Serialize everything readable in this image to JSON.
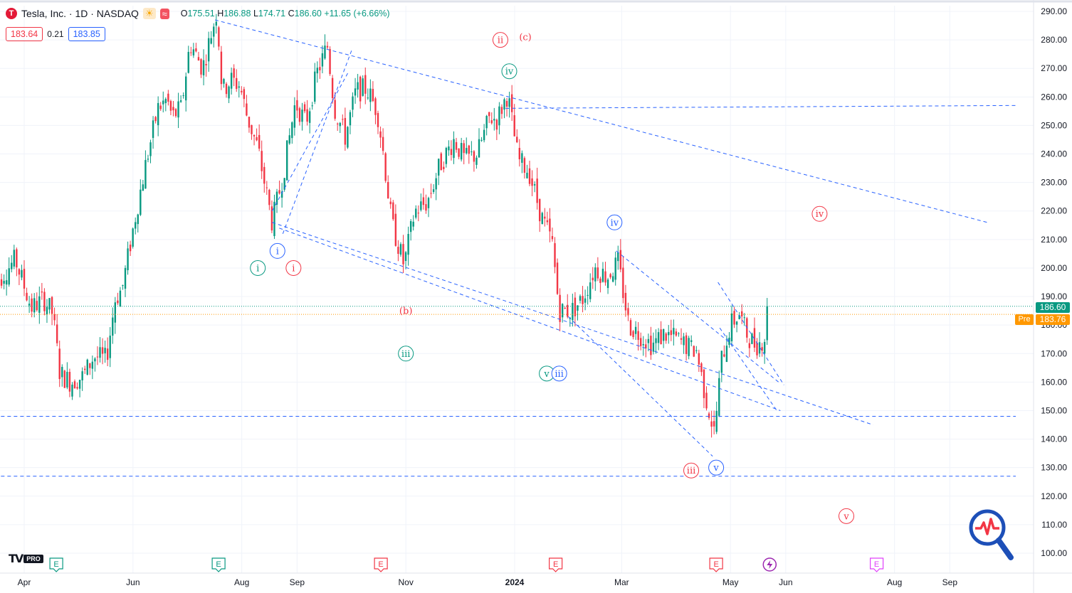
{
  "header": {
    "symbol": "Tesla, Inc. · 1D · NASDAQ",
    "logo_letter": "T",
    "icons": [
      "sun-icon",
      "wave-icon"
    ],
    "ohlc": {
      "open_label": "O",
      "open": "175.51",
      "high_label": "H",
      "high": "186.88",
      "low_label": "L",
      "low": "174.71",
      "close_label": "C",
      "close": "186.60",
      "change": "+11.65 (+6.66%)"
    }
  },
  "trade": {
    "sell": "183.64",
    "spread": "0.21",
    "buy": "183.85"
  },
  "price_tags": {
    "last": "186.60",
    "pre_label": "Pre",
    "pre": "183.76"
  },
  "branding": {
    "mark": "TV",
    "pro": "PRO"
  },
  "colors": {
    "up": "#089981",
    "down": "#f23645",
    "line": "#2962ff",
    "pre": "#ff9800",
    "green_label": "#089981",
    "red_label": "#f23645",
    "blue_label": "#2962ff",
    "event_purple": "#9c27b0",
    "event_magenta": "#e040fb"
  },
  "chart_data": {
    "type": "candlestick",
    "y_ticks": [
      "290.00",
      "280.00",
      "270.00",
      "260.00",
      "250.00",
      "240.00",
      "230.00",
      "220.00",
      "210.00",
      "200.00",
      "190.00",
      "180.00",
      "170.00",
      "160.00",
      "150.00",
      "140.00",
      "130.00",
      "120.00",
      "110.00",
      "100.00"
    ],
    "ylim": [
      97,
      293
    ],
    "x_ticks": [
      {
        "label": "Apr",
        "date": "2023-04-01"
      },
      {
        "label": "Jun",
        "date": "2023-06-01"
      },
      {
        "label": "Aug",
        "date": "2023-08-01"
      },
      {
        "label": "Sep",
        "date": "2023-09-01"
      },
      {
        "label": "Nov",
        "date": "2023-11-01"
      },
      {
        "label": "2024",
        "date": "2024-01-01",
        "bold": true
      },
      {
        "label": "Mar",
        "date": "2024-03-01"
      },
      {
        "label": "May",
        "date": "2024-05-01"
      },
      {
        "label": "Jun",
        "date": "2024-06-01"
      },
      {
        "label": "Aug",
        "date": "2024-08-01"
      },
      {
        "label": "Sep",
        "date": "2024-09-01"
      }
    ],
    "price_path": [
      [
        "2023-03-15",
        194
      ],
      [
        "2023-03-27",
        203
      ],
      [
        "2023-04-05",
        186
      ],
      [
        "2023-04-12",
        189
      ],
      [
        "2023-04-17",
        184
      ],
      [
        "2023-04-21",
        163
      ],
      [
        "2023-04-27",
        160
      ],
      [
        "2023-05-04",
        162
      ],
      [
        "2023-05-10",
        169
      ],
      [
        "2023-05-17",
        168
      ],
      [
        "2023-05-22",
        189
      ],
      [
        "2023-05-26",
        193
      ],
      [
        "2023-06-02",
        217
      ],
      [
        "2023-06-08",
        236
      ],
      [
        "2023-06-15",
        256
      ],
      [
        "2023-06-20",
        259
      ],
      [
        "2023-06-23",
        253
      ],
      [
        "2023-06-28",
        256
      ],
      [
        "2023-07-03",
        279
      ],
      [
        "2023-07-10",
        270
      ],
      [
        "2023-07-18",
        290
      ],
      [
        "2023-07-21",
        262
      ],
      [
        "2023-07-26",
        266
      ],
      [
        "2023-07-31",
        264
      ],
      [
        "2023-08-04",
        253
      ],
      [
        "2023-08-10",
        242
      ],
      [
        "2023-08-18",
        216
      ],
      [
        "2023-08-24",
        232
      ],
      [
        "2023-08-31",
        258
      ],
      [
        "2023-09-06",
        251
      ],
      [
        "2023-09-12",
        268
      ],
      [
        "2023-09-18",
        278
      ],
      [
        "2023-09-22",
        256
      ],
      [
        "2023-09-28",
        246
      ],
      [
        "2023-10-04",
        262
      ],
      [
        "2023-10-10",
        263
      ],
      [
        "2023-10-16",
        255
      ],
      [
        "2023-10-19",
        242
      ],
      [
        "2023-10-24",
        216
      ],
      [
        "2023-10-31",
        201
      ],
      [
        "2023-11-06",
        220
      ],
      [
        "2023-11-13",
        223
      ],
      [
        "2023-11-20",
        236
      ],
      [
        "2023-11-28",
        245
      ],
      [
        "2023-12-04",
        238
      ],
      [
        "2023-12-11",
        240
      ],
      [
        "2023-12-18",
        253
      ],
      [
        "2023-12-22",
        252
      ],
      [
        "2023-12-28",
        261
      ],
      [
        "2024-01-03",
        238
      ],
      [
        "2024-01-09",
        234
      ],
      [
        "2024-01-16",
        218
      ],
      [
        "2024-01-22",
        209
      ],
      [
        "2024-01-26",
        185
      ],
      [
        "2024-02-02",
        185
      ],
      [
        "2024-02-08",
        189
      ],
      [
        "2024-02-15",
        200
      ],
      [
        "2024-02-22",
        197
      ],
      [
        "2024-02-28",
        202
      ],
      [
        "2024-03-05",
        180
      ],
      [
        "2024-03-11",
        177
      ],
      [
        "2024-03-18",
        173
      ],
      [
        "2024-03-25",
        177
      ],
      [
        "2024-04-01",
        175
      ],
      [
        "2024-04-08",
        172
      ],
      [
        "2024-04-12",
        171
      ],
      [
        "2024-04-17",
        155
      ],
      [
        "2024-04-22",
        142
      ],
      [
        "2024-04-26",
        168
      ],
      [
        "2024-05-01",
        180
      ],
      [
        "2024-05-06",
        184
      ],
      [
        "2024-05-10",
        177
      ],
      [
        "2024-05-15",
        173
      ],
      [
        "2024-05-20",
        175
      ],
      [
        "2024-05-22",
        186.6
      ]
    ],
    "last_price": 186.6,
    "pre_market": 183.76,
    "trendlines": [
      {
        "from": [
          "2023-07-17",
          287
        ],
        "to": [
          "2024-09-22",
          216
        ]
      },
      {
        "from": [
          "2023-12-27",
          256
        ],
        "to": [
          "2024-10-08",
          257
        ]
      },
      {
        "from": [
          "2023-08-22",
          214
        ],
        "to": [
          "2024-05-29",
          150
        ]
      },
      {
        "from": [
          "2023-08-18",
          216
        ],
        "to": [
          "2024-07-20",
          145
        ]
      },
      {
        "from": [
          "2023-08-18",
          220
        ],
        "to": [
          "2023-09-30",
          269
        ]
      },
      {
        "from": [
          "2023-08-24",
          212
        ],
        "to": [
          "2023-10-02",
          277
        ]
      },
      {
        "from": [
          "2024-02-27",
          206
        ],
        "to": [
          "2024-05-28",
          160
        ]
      },
      {
        "from": [
          "2024-01-31",
          183
        ],
        "to": [
          "2024-04-21",
          134
        ]
      },
      {
        "from": [
          "2024-04-24",
          195
        ],
        "to": [
          "2024-05-31",
          159
        ]
      },
      {
        "from": [
          "2024-04-25",
          179
        ],
        "to": [
          "2024-05-27",
          150
        ]
      },
      {
        "from": [
          "2023-03-01",
          148
        ],
        "to": [
          "2024-10-08",
          148
        ]
      },
      {
        "from": [
          "2023-03-01",
          127
        ],
        "to": [
          "2024-10-08",
          127
        ]
      }
    ],
    "wave_labels": [
      {
        "text": "i",
        "date": "2023-08-21",
        "price": 206,
        "color": "blue"
      },
      {
        "text": "i",
        "date": "2023-08-10",
        "price": 200,
        "color": "green"
      },
      {
        "text": "i",
        "date": "2023-08-30",
        "price": 200,
        "color": "red"
      },
      {
        "text": "ii",
        "date": "2023-12-24",
        "price": 280,
        "color": "red"
      },
      {
        "text": "(c)",
        "date": "2024-01-07",
        "price": 281,
        "color": "red",
        "plain": true
      },
      {
        "text": "iv",
        "date": "2023-12-29",
        "price": 269,
        "color": "green"
      },
      {
        "text": "iv",
        "date": "2024-02-26",
        "price": 216,
        "color": "blue"
      },
      {
        "text": "iv",
        "date": "2024-06-20",
        "price": 219,
        "color": "red"
      },
      {
        "text": "(b)",
        "date": "2023-11-01",
        "price": 185,
        "color": "red",
        "plain": true
      },
      {
        "text": "iii",
        "date": "2023-11-01",
        "price": 170,
        "color": "green"
      },
      {
        "text": "v",
        "date": "2024-01-19",
        "price": 163,
        "color": "green"
      },
      {
        "text": "iii",
        "date": "2024-01-26",
        "price": 163,
        "color": "blue"
      },
      {
        "text": "iii",
        "date": "2024-04-09",
        "price": 129,
        "color": "red"
      },
      {
        "text": "v",
        "date": "2024-04-23",
        "price": 130,
        "color": "blue"
      },
      {
        "text": "v",
        "date": "2024-07-05",
        "price": 113,
        "color": "red"
      }
    ],
    "events": [
      {
        "type": "E",
        "date": "2023-04-19",
        "color": "green"
      },
      {
        "type": "E",
        "date": "2023-07-19",
        "color": "green"
      },
      {
        "type": "E",
        "date": "2023-10-18",
        "color": "red"
      },
      {
        "type": "E",
        "date": "2024-01-24",
        "color": "red"
      },
      {
        "type": "E",
        "date": "2024-04-23",
        "color": "red"
      },
      {
        "type": "S",
        "date": "2024-05-23",
        "color": "purple"
      },
      {
        "type": "E",
        "date": "2024-07-22",
        "color": "magenta"
      }
    ]
  }
}
